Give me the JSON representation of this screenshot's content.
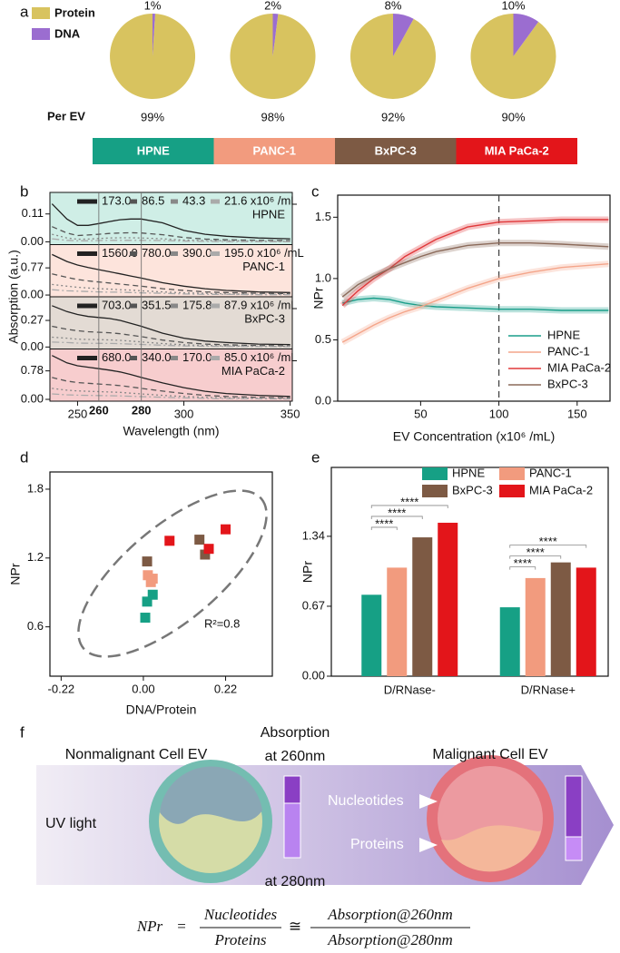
{
  "panel_labels": [
    "a",
    "b",
    "c",
    "d",
    "e",
    "f"
  ],
  "chart_data": [
    {
      "type": "pie",
      "labels": [
        "Protein",
        "DNA"
      ],
      "colors": [
        "#d8c35f",
        "#9b6dd0"
      ],
      "annotation": "Per EV",
      "categories": [
        "HPNE",
        "PANC-1",
        "BxPC-3",
        "MIA PaCa-2"
      ],
      "category_colors": [
        "#16a085",
        "#f29b7e",
        "#7d5a44",
        "#e3151a"
      ],
      "values": [
        [
          99,
          1
        ],
        [
          98,
          2
        ],
        [
          92,
          8
        ],
        [
          90,
          10
        ]
      ],
      "value_labels": [
        [
          "99%",
          "1%"
        ],
        [
          "98%",
          "2%"
        ],
        [
          "92%",
          "8%"
        ],
        [
          "90%",
          "10%"
        ]
      ]
    },
    {
      "type": "spectra",
      "x_label": "Wavelength (nm)",
      "y_label": "Absorption (a.u.)",
      "xlim": [
        237,
        351
      ],
      "xticks": [
        250,
        300,
        350
      ],
      "vlines": [
        260,
        280
      ],
      "x": [
        238,
        245,
        250,
        255,
        260,
        265,
        270,
        275,
        280,
        290,
        300,
        310,
        320,
        335,
        350
      ],
      "panels": [
        {
          "name": "HPNE",
          "color": "#cfeee6",
          "ylim": [
            -0.011,
            0.195
          ],
          "yticks": [
            {
              "value": 0,
              "label": "0.00"
            },
            0.11
          ],
          "series": [
            {
              "name": "173.0",
              "color": "#222",
              "style": "solid",
              "values": [
                0.15,
                0.09,
                0.065,
                0.065,
                0.072,
                0.08,
                0.087,
                0.09,
                0.09,
                0.075,
                0.045,
                0.03,
                0.022,
                0.015,
                0.012
              ]
            },
            {
              "name": "86.5",
              "color": "#555",
              "style": "dashed",
              "values": [
                0.06,
                0.035,
                0.025,
                0.027,
                0.03,
                0.033,
                0.035,
                0.036,
                0.035,
                0.028,
                0.017,
                0.011,
                0.008,
                0.006,
                0.005
              ]
            },
            {
              "name": "43.3",
              "color": "#888",
              "style": "dotted",
              "values": [
                0.03,
                0.015,
                0.01,
                0.011,
                0.013,
                0.015,
                0.016,
                0.016,
                0.015,
                0.012,
                0.007,
                0.005,
                0.004,
                0.003,
                0.002
              ]
            },
            {
              "name": "21.6 x10⁶ /mL",
              "color": "#aaa",
              "style": "dashdot",
              "values": [
                0.012,
                0.006,
                0.004,
                0.004,
                0.005,
                0.006,
                0.006,
                0.006,
                0.006,
                0.005,
                0.003,
                0.002,
                0.001,
                0.001,
                0.001
              ]
            }
          ]
        },
        {
          "name": "PANC-1",
          "color": "#fde4dc",
          "ylim": [
            -0.05,
            1.43
          ],
          "yticks": [
            {
              "value": 0,
              "label": "0.00"
            },
            0.77
          ],
          "series": [
            {
              "name": "1560.0",
              "color": "#222",
              "style": "solid",
              "values": [
                1.15,
                0.95,
                0.85,
                0.78,
                0.72,
                0.66,
                0.6,
                0.54,
                0.48,
                0.35,
                0.25,
                0.18,
                0.13,
                0.09,
                0.07
              ]
            },
            {
              "name": "780.0",
              "color": "#555",
              "style": "dashed",
              "values": [
                0.6,
                0.5,
                0.44,
                0.4,
                0.37,
                0.34,
                0.31,
                0.28,
                0.25,
                0.18,
                0.13,
                0.09,
                0.07,
                0.05,
                0.04
              ]
            },
            {
              "name": "390.0",
              "color": "#888",
              "style": "dotted",
              "values": [
                0.3,
                0.25,
                0.22,
                0.2,
                0.18,
                0.17,
                0.15,
                0.14,
                0.12,
                0.09,
                0.06,
                0.05,
                0.03,
                0.02,
                0.02
              ]
            },
            {
              "name": "195.0 x10⁶ /mL",
              "color": "#aaa",
              "style": "dashdot",
              "values": [
                0.15,
                0.12,
                0.11,
                0.1,
                0.09,
                0.08,
                0.08,
                0.07,
                0.06,
                0.05,
                0.03,
                0.02,
                0.02,
                0.01,
                0.01
              ]
            }
          ]
        },
        {
          "name": "BxPC-3",
          "color": "#e3dbd4",
          "ylim": [
            -0.02,
            0.51
          ],
          "yticks": [
            {
              "value": 0,
              "label": "0.00"
            },
            0.27
          ],
          "series": [
            {
              "name": "703.0",
              "color": "#222",
              "style": "solid",
              "values": [
                0.42,
                0.36,
                0.33,
                0.31,
                0.3,
                0.29,
                0.27,
                0.24,
                0.21,
                0.14,
                0.09,
                0.06,
                0.045,
                0.03,
                0.025
              ]
            },
            {
              "name": "351.5",
              "color": "#555",
              "style": "dashed",
              "values": [
                0.21,
                0.18,
                0.165,
                0.155,
                0.15,
                0.145,
                0.135,
                0.12,
                0.105,
                0.07,
                0.045,
                0.03,
                0.022,
                0.015,
                0.012
              ]
            },
            {
              "name": "175.8",
              "color": "#888",
              "style": "dotted",
              "values": [
                0.1,
                0.09,
                0.08,
                0.077,
                0.075,
                0.072,
                0.068,
                0.06,
                0.052,
                0.035,
                0.022,
                0.015,
                0.011,
                0.008,
                0.006
              ]
            },
            {
              "name": "87.9 x10⁶ /mL",
              "color": "#aaa",
              "style": "dashdot",
              "values": [
                0.05,
                0.045,
                0.04,
                0.038,
                0.037,
                0.036,
                0.034,
                0.03,
                0.026,
                0.018,
                0.011,
                0.008,
                0.006,
                0.004,
                0.003
              ]
            }
          ]
        },
        {
          "name": "MIA PaCa-2",
          "color": "#f7cdce",
          "ylim": [
            -0.05,
            1.38
          ],
          "yticks": [
            {
              "value": 0,
              "label": "0.00"
            },
            0.78
          ],
          "series": [
            {
              "name": "680.0",
              "color": "#222",
              "style": "solid",
              "values": [
                1.2,
                1.0,
                0.92,
                0.88,
                0.84,
                0.8,
                0.75,
                0.68,
                0.6,
                0.45,
                0.32,
                0.22,
                0.16,
                0.11,
                0.08
              ]
            },
            {
              "name": "340.0",
              "color": "#555",
              "style": "dashed",
              "values": [
                0.6,
                0.5,
                0.46,
                0.44,
                0.42,
                0.4,
                0.375,
                0.34,
                0.3,
                0.225,
                0.16,
                0.11,
                0.08,
                0.055,
                0.04
              ]
            },
            {
              "name": "170.0",
              "color": "#888",
              "style": "dotted",
              "values": [
                0.3,
                0.25,
                0.23,
                0.22,
                0.21,
                0.2,
                0.19,
                0.17,
                0.15,
                0.11,
                0.08,
                0.055,
                0.04,
                0.03,
                0.02
              ]
            },
            {
              "name": "85.0 x10⁶ /mL",
              "color": "#aaa",
              "style": "dashdot",
              "values": [
                0.15,
                0.125,
                0.115,
                0.11,
                0.105,
                0.1,
                0.094,
                0.085,
                0.075,
                0.056,
                0.04,
                0.028,
                0.02,
                0.014,
                0.01
              ]
            }
          ]
        }
      ]
    },
    {
      "type": "line",
      "x_label": "EV Concentration (x10⁶ /mL)",
      "y_label": "NPr",
      "xlim": [
        -3,
        171
      ],
      "ylim": [
        0,
        1.68
      ],
      "xticks": [
        50,
        100,
        150
      ],
      "yticks": [
        {
          "value": 0,
          "label": "0.0"
        },
        0.5,
        {
          "value": 1,
          "label": "1.0"
        },
        1.5
      ],
      "vlines": [
        100
      ],
      "legend": "lower right",
      "x": [
        0,
        10,
        20,
        30,
        40,
        50,
        60,
        80,
        100,
        120,
        140,
        170
      ],
      "series": [
        {
          "name": "HPNE",
          "color": "#1a9e8a",
          "values": [
            0.8,
            0.83,
            0.84,
            0.83,
            0.8,
            0.78,
            0.77,
            0.76,
            0.75,
            0.75,
            0.74,
            0.74
          ]
        },
        {
          "name": "PANC-1",
          "color": "#f4a58a",
          "values": [
            0.48,
            0.55,
            0.62,
            0.68,
            0.73,
            0.77,
            0.82,
            0.92,
            1.0,
            1.05,
            1.09,
            1.12
          ]
        },
        {
          "name": "MIA PaCa-2",
          "color": "#e0383a",
          "values": [
            0.78,
            0.9,
            1.0,
            1.08,
            1.18,
            1.25,
            1.32,
            1.42,
            1.46,
            1.47,
            1.48,
            1.48
          ]
        },
        {
          "name": "BxPC-3",
          "color": "#8b6a5a",
          "values": [
            0.85,
            0.95,
            1.02,
            1.08,
            1.13,
            1.18,
            1.22,
            1.27,
            1.29,
            1.29,
            1.28,
            1.26
          ]
        }
      ]
    },
    {
      "type": "scatter",
      "x_label": "DNA/Protein",
      "y_label": "NPr",
      "annotation": "R²=0.8",
      "xlim": [
        -0.25,
        0.345
      ],
      "ylim": [
        0.17,
        1.95
      ],
      "xticks": [
        {
          "value": -0.22,
          "label": "-0.22"
        },
        {
          "value": 0,
          "label": "0.00"
        },
        0.22
      ],
      "yticks": [
        0.6,
        1.2,
        1.8
      ],
      "series": [
        {
          "color": "#16a085",
          "x": [
            0.005,
            0.01,
            0.025
          ],
          "values": [
            0.68,
            0.82,
            0.88
          ]
        },
        {
          "color": "#f29b7e",
          "x": [
            0.012,
            0.025,
            0.02
          ],
          "values": [
            1.05,
            1.02,
            0.99
          ]
        },
        {
          "color": "#7d5a44",
          "x": [
            0.01,
            0.15,
            0.165
          ],
          "values": [
            1.17,
            1.36,
            1.23
          ]
        },
        {
          "color": "#e3151a",
          "x": [
            0.07,
            0.175,
            0.22
          ],
          "values": [
            1.35,
            1.28,
            1.45
          ]
        }
      ]
    },
    {
      "type": "bar",
      "y_label": "NPr",
      "ylim": [
        0,
        2.0
      ],
      "yticks": [
        {
          "value": 0,
          "label": "0.00"
        },
        0.67,
        1.34
      ],
      "categories": [
        "D/RNase-",
        "D/RNase+"
      ],
      "series": [
        {
          "name": "HPNE",
          "color": "#16a085",
          "values": [
            0.78,
            0.66
          ]
        },
        {
          "name": "PANC-1",
          "color": "#f29b7e",
          "values": [
            1.04,
            0.94
          ]
        },
        {
          "name": "BxPC-3",
          "color": "#7d5a44",
          "values": [
            1.33,
            1.09
          ]
        },
        {
          "name": "MIA PaCa-2",
          "color": "#e3151a",
          "values": [
            1.47,
            1.04
          ]
        }
      ],
      "significance": [
        "****",
        "****",
        "****",
        "****",
        "****",
        "****"
      ]
    }
  ],
  "diagram": {
    "left_title": "Nonmalignant  Cell EV",
    "absorption_title": [
      "Absorption",
      "at 260nm"
    ],
    "right_title": "Malignant  Cell EV",
    "uv": "UV light",
    "nucleotides": "Nucleotides",
    "proteins": "Proteins",
    "bottom_label": "at 280nm",
    "equation": {
      "lhs": "NPr",
      "eq": "=",
      "num1": "Nucleotides",
      "den1": "Proteins",
      "approx": "≅",
      "num2": "Absorption@260nm",
      "den2": "Absorption@280nm"
    }
  }
}
